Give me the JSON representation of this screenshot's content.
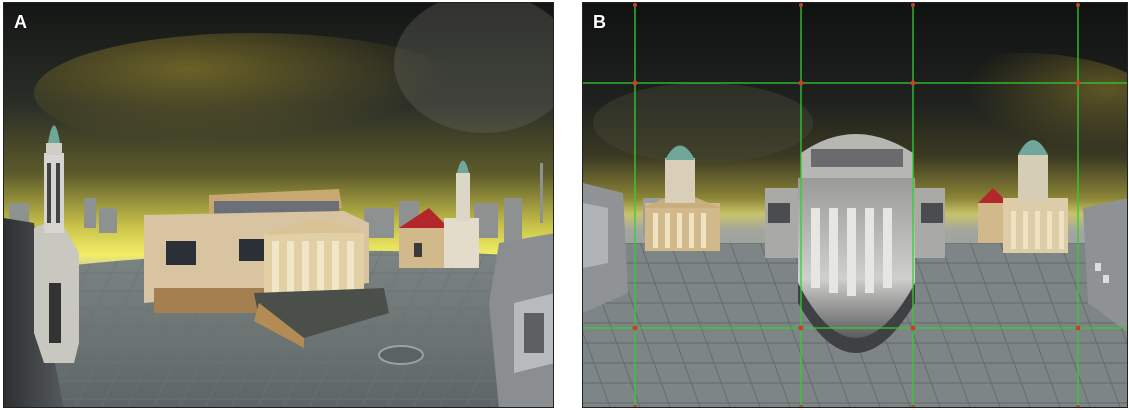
{
  "panels": [
    {
      "label": "A"
    },
    {
      "label": "B"
    }
  ],
  "colors": {
    "sky_dark": "#1c1f1d",
    "horizon_glow": "#f2ee66",
    "ground": "#7f878a",
    "sandstone": "#d2b98c",
    "dome_green": "#6fa89a",
    "roof_red": "#b3262a",
    "grid_line": "#2fd12f",
    "grid_node": "#d03a2a"
  }
}
